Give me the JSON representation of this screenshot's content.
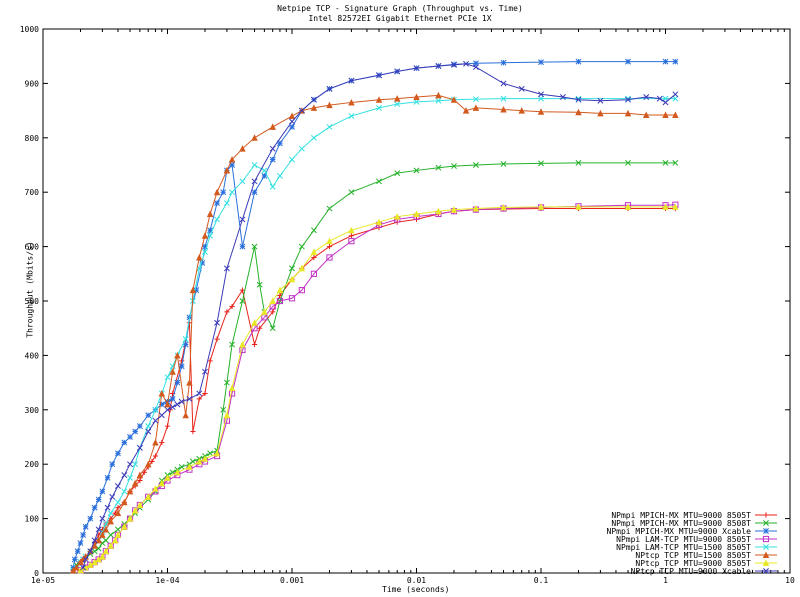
{
  "chart_data": {
    "type": "line",
    "title": "Netpipe TCP - Signature Graph (Throughput vs. Time)",
    "subtitle": "Intel 82572EI Gigabit Ethernet PCIe 1X",
    "xlabel": "Time (seconds)",
    "ylabel": "Throughput (Mbits/s)",
    "xscale": "log",
    "xlim": [
      1e-05,
      10
    ],
    "ylim": [
      0,
      1000
    ],
    "xticks": [
      1e-05,
      0.0001,
      0.001,
      0.01,
      0.1,
      1,
      10
    ],
    "xtick_labels": [
      "1e-05",
      "1e-04",
      "0.001",
      "0.01",
      "0.1",
      "1",
      "10"
    ],
    "yticks": [
      0,
      100,
      200,
      300,
      400,
      500,
      600,
      700,
      800,
      900,
      1000
    ],
    "ytick_labels": [
      "0",
      "100",
      "200",
      "300",
      "400",
      "500",
      "600",
      "700",
      "800",
      "900",
      "1000"
    ],
    "grid": false,
    "legend_position": "bottom-right",
    "series": [
      {
        "name": "NPmpi MPICH-MX MTU=9000 8505T",
        "color": "#e8221a",
        "marker": "+",
        "x": [
          1.75e-05,
          1.85e-05,
          1.9e-05,
          2e-05,
          2.1e-05,
          2.2e-05,
          2.4e-05,
          2.6e-05,
          2.8e-05,
          3e-05,
          3.2e-05,
          3.5e-05,
          3.8e-05,
          4e-05,
          4.5e-05,
          5e-05,
          5.5e-05,
          6e-05,
          6.5e-05,
          7e-05,
          7.5e-05,
          8e-05,
          9e-05,
          0.0001,
          0.000105,
          0.00011,
          0.00013,
          0.00015,
          0.00016,
          0.00018,
          0.0002,
          0.00022,
          0.00025,
          0.0003,
          0.00033,
          0.0004,
          0.0005,
          0.00055,
          0.0007,
          0.0008,
          0.001,
          0.0012,
          0.0015,
          0.002,
          0.003,
          0.005,
          0.007,
          0.01,
          0.015,
          0.02,
          0.03,
          0.05,
          0.1,
          0.2,
          0.5,
          1,
          1.2
        ],
        "y": [
          5,
          10,
          15,
          20,
          25,
          30,
          40,
          55,
          70,
          80,
          90,
          100,
          110,
          120,
          130,
          150,
          160,
          170,
          185,
          195,
          205,
          215,
          240,
          270,
          300,
          330,
          390,
          460,
          260,
          320,
          330,
          390,
          430,
          480,
          490,
          520,
          420,
          450,
          480,
          510,
          540,
          560,
          580,
          600,
          620,
          635,
          645,
          650,
          660,
          665,
          668,
          669,
          670,
          670,
          670,
          670,
          670
        ]
      },
      {
        "name": "NPmpi MPICH-MX MTU=9000 8508T",
        "color": "#25b22a",
        "marker": "x",
        "x": [
          1.75e-05,
          1.85e-05,
          2e-05,
          2.1e-05,
          2.2e-05,
          2.4e-05,
          2.6e-05,
          2.8e-05,
          3e-05,
          3.2e-05,
          3.5e-05,
          4e-05,
          4.5e-05,
          5e-05,
          5.5e-05,
          6e-05,
          7e-05,
          8e-05,
          9e-05,
          0.0001,
          0.00011,
          0.00012,
          0.00013,
          0.00015,
          0.00016,
          0.00018,
          0.0002,
          0.00022,
          0.00025,
          0.00028,
          0.0003,
          0.00033,
          0.0004,
          0.0005,
          0.00055,
          0.0006,
          0.0007,
          0.0008,
          0.001,
          0.0012,
          0.0015,
          0.002,
          0.003,
          0.005,
          0.007,
          0.01,
          0.015,
          0.02,
          0.03,
          0.05,
          0.1,
          0.2,
          0.5,
          1,
          1.2
        ],
        "y": [
          10,
          15,
          20,
          25,
          30,
          35,
          40,
          45,
          55,
          60,
          70,
          80,
          90,
          100,
          110,
          120,
          135,
          150,
          170,
          180,
          185,
          190,
          195,
          200,
          205,
          210,
          215,
          220,
          225,
          300,
          350,
          420,
          500,
          600,
          530,
          480,
          450,
          500,
          560,
          600,
          630,
          670,
          700,
          720,
          735,
          740,
          745,
          748,
          750,
          752,
          753,
          754,
          754,
          754,
          754
        ]
      },
      {
        "name": "NPmpi MPICH-MX MTU=9000 Xcable",
        "color": "#2a6fdb",
        "marker": "*",
        "x": [
          1.75e-05,
          1.8e-05,
          1.9e-05,
          2e-05,
          2.1e-05,
          2.2e-05,
          2.4e-05,
          2.6e-05,
          2.8e-05,
          3e-05,
          3.3e-05,
          3.6e-05,
          4e-05,
          4.5e-05,
          5e-05,
          5.5e-05,
          6e-05,
          7e-05,
          8e-05,
          9e-05,
          0.0001,
          0.00011,
          0.00012,
          0.00013,
          0.00014,
          0.00015,
          0.00017,
          0.00019,
          0.0002,
          0.00022,
          0.00025,
          0.00028,
          0.0003,
          0.00033,
          0.0004,
          0.0005,
          0.0006,
          0.0007,
          0.0008,
          0.001,
          0.0012,
          0.0015,
          0.002,
          0.003,
          0.005,
          0.007,
          0.01,
          0.015,
          0.02,
          0.03,
          0.05,
          0.1,
          0.2,
          0.5,
          1,
          1.2
        ],
        "y": [
          10,
          25,
          40,
          55,
          70,
          85,
          100,
          120,
          135,
          150,
          175,
          200,
          220,
          240,
          250,
          260,
          270,
          290,
          300,
          310,
          315,
          320,
          350,
          380,
          420,
          470,
          520,
          570,
          600,
          630,
          680,
          700,
          740,
          750,
          600,
          700,
          730,
          760,
          790,
          820,
          850,
          870,
          890,
          905,
          915,
          922,
          928,
          932,
          935,
          937,
          938,
          939,
          940,
          940,
          940,
          940
        ]
      },
      {
        "name": "NPmpi LAM-TCP MTU=9000 8505T",
        "color": "#c230c8",
        "marker": "square",
        "x": [
          2e-05,
          2.2e-05,
          2.4e-05,
          2.6e-05,
          2.8e-05,
          3e-05,
          3.2e-05,
          3.5e-05,
          3.8e-05,
          4e-05,
          4.5e-05,
          5e-05,
          5.5e-05,
          6e-05,
          7e-05,
          8e-05,
          9e-05,
          0.0001,
          0.00012,
          0.00015,
          0.00018,
          0.0002,
          0.00025,
          0.0003,
          0.00033,
          0.0004,
          0.0005,
          0.0006,
          0.0007,
          0.0008,
          0.001,
          0.0012,
          0.0015,
          0.002,
          0.003,
          0.005,
          0.007,
          0.01,
          0.015,
          0.02,
          0.03,
          0.05,
          0.1,
          0.2,
          0.5,
          1,
          1.2
        ],
        "y": [
          5,
          10,
          15,
          20,
          25,
          30,
          40,
          50,
          60,
          70,
          85,
          100,
          115,
          125,
          140,
          150,
          160,
          170,
          180,
          190,
          200,
          205,
          215,
          280,
          330,
          410,
          450,
          470,
          490,
          500,
          505,
          520,
          550,
          580,
          610,
          640,
          650,
          655,
          660,
          665,
          668,
          670,
          672,
          674,
          676,
          676,
          677
        ]
      },
      {
        "name": "NPmpi LAM-TCP MTU=1500 8505T",
        "color": "#33e0e0",
        "marker": "x",
        "x": [
          1.75e-05,
          1.85e-05,
          2e-05,
          2.1e-05,
          2.2e-05,
          2.4e-05,
          2.6e-05,
          2.8e-05,
          3e-05,
          3.2e-05,
          3.5e-05,
          4e-05,
          4.5e-05,
          5e-05,
          5.5e-05,
          6e-05,
          7e-05,
          8e-05,
          9e-05,
          0.0001,
          0.00011,
          0.00012,
          0.00014,
          0.00016,
          0.00018,
          0.0002,
          0.00022,
          0.00025,
          0.0003,
          0.00033,
          0.0004,
          0.0005,
          0.0006,
          0.0007,
          0.0008,
          0.001,
          0.0012,
          0.0015,
          0.002,
          0.003,
          0.005,
          0.007,
          0.01,
          0.015,
          0.02,
          0.03,
          0.05,
          0.1,
          0.2,
          0.5,
          1,
          1.2
        ],
        "y": [
          5,
          10,
          20,
          25,
          30,
          40,
          50,
          60,
          75,
          90,
          110,
          130,
          150,
          175,
          200,
          230,
          270,
          300,
          330,
          360,
          380,
          400,
          430,
          500,
          560,
          590,
          620,
          650,
          680,
          700,
          720,
          750,
          740,
          710,
          730,
          760,
          780,
          800,
          820,
          840,
          855,
          862,
          866,
          868,
          870,
          871,
          872,
          872,
          872,
          872,
          872,
          872
        ]
      },
      {
        "name": "NPtcp TCP MTU=1500 8505T",
        "color": "#d35a1e",
        "marker": "triangle",
        "x": [
          1.75e-05,
          1.85e-05,
          2e-05,
          2.1e-05,
          2.2e-05,
          2.4e-05,
          2.6e-05,
          2.8e-05,
          3e-05,
          3.2e-05,
          3.5e-05,
          4e-05,
          4.5e-05,
          5e-05,
          5.5e-05,
          6e-05,
          7e-05,
          8e-05,
          9e-05,
          0.0001,
          0.00011,
          0.00012,
          0.00014,
          0.00015,
          0.00016,
          0.00018,
          0.0002,
          0.00022,
          0.00025,
          0.0003,
          0.00033,
          0.0004,
          0.0005,
          0.0007,
          0.001,
          0.0012,
          0.0015,
          0.002,
          0.003,
          0.005,
          0.007,
          0.01,
          0.015,
          0.02,
          0.025,
          0.03,
          0.05,
          0.07,
          0.1,
          0.2,
          0.3,
          0.5,
          0.7,
          1,
          1.2
        ],
        "y": [
          5,
          10,
          20,
          25,
          30,
          40,
          50,
          60,
          70,
          80,
          95,
          110,
          130,
          150,
          165,
          180,
          200,
          240,
          330,
          310,
          370,
          400,
          290,
          350,
          520,
          580,
          620,
          660,
          700,
          740,
          760,
          780,
          800,
          820,
          840,
          850,
          855,
          860,
          865,
          870,
          872,
          875,
          878,
          870,
          850,
          855,
          852,
          850,
          848,
          847,
          845,
          845,
          842,
          842,
          842
        ]
      },
      {
        "name": "NPtcp TCP MTU=9000 8505T",
        "color": "#e8e826",
        "marker": "triangle",
        "x": [
          2e-05,
          2.2e-05,
          2.4e-05,
          2.6e-05,
          2.8e-05,
          3e-05,
          3.2e-05,
          3.5e-05,
          3.8e-05,
          4e-05,
          4.5e-05,
          5e-05,
          5.5e-05,
          6e-05,
          7e-05,
          8e-05,
          9e-05,
          0.0001,
          0.00012,
          0.00015,
          0.00018,
          0.0002,
          0.00025,
          0.0003,
          0.00033,
          0.0004,
          0.0005,
          0.0006,
          0.0007,
          0.0008,
          0.001,
          0.0012,
          0.0015,
          0.002,
          0.003,
          0.005,
          0.007,
          0.01,
          0.015,
          0.02,
          0.03,
          0.05,
          0.1,
          0.2,
          0.5,
          1,
          1.2
        ],
        "y": [
          5,
          10,
          15,
          20,
          25,
          30,
          40,
          50,
          60,
          70,
          85,
          100,
          115,
          125,
          140,
          155,
          165,
          175,
          185,
          195,
          205,
          210,
          220,
          290,
          340,
          420,
          460,
          480,
          500,
          520,
          540,
          560,
          590,
          610,
          630,
          645,
          655,
          660,
          665,
          668,
          670,
          672,
          673,
          673,
          673,
          673,
          673
        ]
      },
      {
        "name": "NPtcp TCP MTU=9000 Xcable",
        "color": "#3b3bb8",
        "marker": "x",
        "x": [
          2.1e-05,
          2.2e-05,
          2.4e-05,
          2.6e-05,
          2.8e-05,
          3e-05,
          3.3e-05,
          3.6e-05,
          4e-05,
          4.5e-05,
          5e-05,
          6e-05,
          7e-05,
          8e-05,
          9e-05,
          0.0001,
          0.00011,
          0.00012,
          0.00013,
          0.00015,
          0.00018,
          0.0002,
          0.00025,
          0.0003,
          0.0004,
          0.0005,
          0.0007,
          0.001,
          0.0012,
          0.0015,
          0.002,
          0.003,
          0.005,
          0.007,
          0.01,
          0.015,
          0.02,
          0.025,
          0.03,
          0.05,
          0.07,
          0.1,
          0.15,
          0.2,
          0.3,
          0.5,
          0.7,
          0.9,
          1,
          1.2
        ],
        "y": [
          10,
          25,
          40,
          60,
          80,
          100,
          120,
          140,
          160,
          180,
          200,
          230,
          260,
          280,
          290,
          300,
          305,
          310,
          315,
          320,
          330,
          370,
          460,
          560,
          650,
          720,
          780,
          830,
          850,
          870,
          890,
          905,
          915,
          922,
          928,
          932,
          934,
          936,
          930,
          900,
          890,
          880,
          875,
          870,
          868,
          870,
          875,
          872,
          865,
          880
        ]
      }
    ]
  }
}
